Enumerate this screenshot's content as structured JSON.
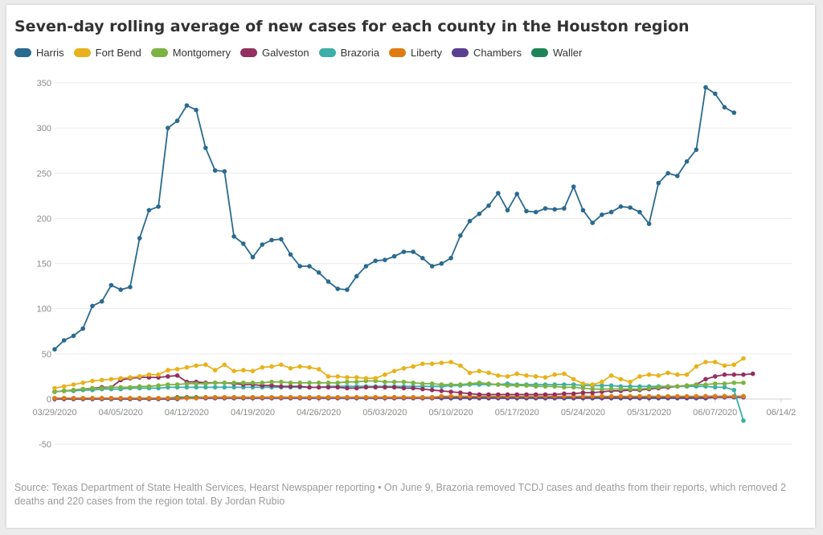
{
  "chart_data": {
    "type": "line",
    "title": "Seven-day rolling average of new cases for each county in the Houston region",
    "xlabel": "",
    "ylabel": "",
    "x_start": "2020-03-29",
    "x_ticks": [
      "03/29/2020",
      "04/05/2020",
      "04/12/2020",
      "04/19/2020",
      "04/26/2020",
      "05/03/2020",
      "05/10/2020",
      "05/17/2020",
      "05/24/2020",
      "05/31/2020",
      "06/07/2020",
      "06/14/2"
    ],
    "y_ticks": [
      350,
      300,
      250,
      200,
      150,
      100,
      50,
      0,
      -50
    ],
    "ylim": [
      -60,
      360
    ],
    "grid": true,
    "legend_position": "top",
    "series": [
      {
        "name": "Harris",
        "color": "#2a6a8e",
        "values": [
          55,
          65,
          70,
          78,
          103,
          108,
          126,
          121,
          124,
          178,
          209,
          213,
          300,
          308,
          325,
          320,
          278,
          253,
          252,
          180,
          172,
          157,
          171,
          176,
          177,
          160,
          147,
          147,
          140,
          130,
          122,
          121,
          136,
          147,
          153,
          154,
          158,
          163,
          163,
          156,
          147,
          150,
          156,
          181,
          197,
          205,
          214,
          228,
          209,
          227,
          208,
          207,
          211,
          210,
          211,
          235,
          209,
          195,
          204,
          207,
          213,
          212,
          207,
          194,
          239,
          250,
          247,
          263,
          276,
          345,
          338,
          323,
          317
        ]
      },
      {
        "name": "Fort Bend",
        "color": "#e8b21c",
        "values": [
          12,
          14,
          16,
          18,
          20,
          21,
          22,
          23,
          24,
          25,
          27,
          27,
          32,
          33,
          35,
          37,
          38,
          32,
          38,
          31,
          32,
          31,
          35,
          36,
          38,
          34,
          36,
          35,
          33,
          25,
          25,
          24,
          24,
          23,
          23,
          27,
          31,
          34,
          36,
          39,
          39,
          40,
          41,
          37,
          29,
          31,
          29,
          26,
          25,
          28,
          26,
          25,
          24,
          27,
          28,
          22,
          17,
          16,
          19,
          26,
          22,
          19,
          25,
          27,
          26,
          29,
          27,
          27,
          36,
          41,
          41,
          37,
          38,
          45
        ]
      },
      {
        "name": "Montgomery",
        "color": "#7cb342",
        "values": [
          8,
          9,
          10,
          11,
          12,
          12,
          13,
          13,
          13,
          14,
          14,
          15,
          16,
          16,
          17,
          17,
          17,
          18,
          18,
          18,
          18,
          18,
          18,
          19,
          19,
          18,
          18,
          18,
          18,
          18,
          18,
          19,
          19,
          20,
          20,
          19,
          19,
          19,
          18,
          17,
          17,
          16,
          16,
          16,
          17,
          18,
          17,
          16,
          15,
          15,
          15,
          14,
          14,
          14,
          13,
          13,
          12,
          11,
          11,
          11,
          11,
          11,
          11,
          12,
          13,
          14,
          14,
          15,
          16,
          16,
          17,
          17,
          18,
          18
        ]
      },
      {
        "name": "Galveston",
        "color": "#923060",
        "values": [
          8,
          9,
          10,
          11,
          12,
          13,
          13,
          21,
          23,
          24,
          24,
          24,
          25,
          26,
          19,
          19,
          18,
          18,
          18,
          17,
          16,
          16,
          15,
          15,
          14,
          14,
          14,
          13,
          13,
          13,
          13,
          12,
          12,
          13,
          13,
          13,
          13,
          12,
          12,
          11,
          10,
          9,
          8,
          7,
          6,
          5,
          5,
          5,
          5,
          5,
          5,
          5,
          5,
          5,
          6,
          6,
          7,
          7,
          8,
          9,
          9,
          10,
          10,
          11,
          12,
          13,
          14,
          15,
          16,
          22,
          25,
          27,
          27,
          27,
          28
        ]
      },
      {
        "name": "Brazoria",
        "color": "#3bafa8",
        "values": [
          8,
          9,
          9,
          10,
          10,
          11,
          11,
          11,
          12,
          12,
          12,
          12,
          13,
          13,
          13,
          13,
          13,
          13,
          13,
          13,
          13,
          13,
          13,
          13,
          13,
          13,
          13,
          13,
          13,
          14,
          14,
          14,
          14,
          14,
          14,
          14,
          14,
          14,
          14,
          14,
          14,
          14,
          15,
          15,
          16,
          16,
          16,
          16,
          17,
          16,
          16,
          16,
          16,
          16,
          16,
          16,
          15,
          15,
          15,
          15,
          14,
          14,
          14,
          14,
          14,
          14,
          14,
          14,
          14,
          14,
          13,
          13,
          10,
          -24
        ]
      },
      {
        "name": "Liberty",
        "color": "#e07b14",
        "values": [
          1,
          1,
          1,
          1,
          1,
          1,
          1,
          1,
          1,
          1,
          1,
          1,
          1,
          1,
          1,
          1,
          2,
          2,
          2,
          2,
          2,
          2,
          2,
          2,
          2,
          2,
          2,
          2,
          2,
          2,
          2,
          2,
          2,
          2,
          2,
          2,
          2,
          2,
          2,
          2,
          2,
          3,
          3,
          3,
          3,
          3,
          3,
          3,
          3,
          3,
          3,
          3,
          3,
          3,
          3,
          3,
          3,
          3,
          3,
          3,
          3,
          3,
          3,
          3,
          3,
          3,
          3,
          3,
          3,
          3,
          3,
          3,
          3,
          3
        ]
      },
      {
        "name": "Chambers",
        "color": "#5b3f91",
        "values": [
          0,
          0,
          0,
          0,
          0,
          0,
          0,
          0,
          0,
          0,
          0,
          0,
          0,
          0,
          1,
          1,
          1,
          1,
          1,
          1,
          1,
          1,
          1,
          1,
          1,
          1,
          1,
          1,
          1,
          1,
          1,
          1,
          1,
          1,
          1,
          1,
          1,
          1,
          1,
          1,
          1,
          1,
          1,
          1,
          1,
          1,
          1,
          1,
          1,
          1,
          1,
          1,
          1,
          1,
          1,
          1,
          1,
          1,
          1,
          1,
          1,
          1,
          1,
          1,
          1,
          1,
          1,
          1,
          1,
          1,
          2,
          2,
          2,
          2
        ]
      },
      {
        "name": "Waller",
        "color": "#1c8456",
        "values": [
          1,
          1,
          1,
          1,
          1,
          1,
          1,
          1,
          1,
          1,
          1,
          1,
          1,
          2,
          2,
          2,
          2,
          2,
          2,
          2,
          2,
          2,
          2,
          2,
          2,
          2,
          2,
          2,
          2,
          2,
          2,
          2,
          2,
          2,
          2,
          2,
          2,
          2,
          2,
          2,
          2,
          2,
          2,
          2,
          2,
          2,
          2,
          2,
          2,
          2,
          2,
          2,
          2,
          2,
          2,
          2,
          2,
          2,
          2,
          2,
          2,
          2,
          2,
          2,
          2,
          2,
          2,
          2,
          2,
          3,
          3,
          3,
          3,
          3
        ]
      }
    ]
  },
  "source_note": "Source: Texas Department of State Health Services, Hearst Newspaper reporting • On June 9, Brazoria removed TCDJ cases and deaths from their reports, which removed 2 deaths and 220 cases from the region total. By Jordan Rubio"
}
